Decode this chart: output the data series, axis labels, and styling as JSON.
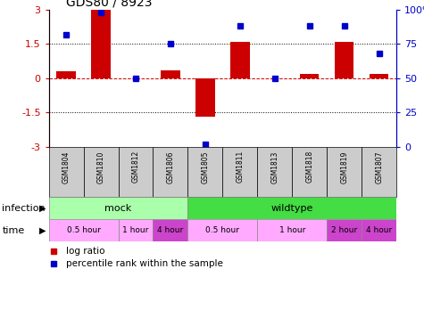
{
  "title": "GDS80 / 8923",
  "samples": [
    "GSM1804",
    "GSM1810",
    "GSM1812",
    "GSM1806",
    "GSM1805",
    "GSM1811",
    "GSM1813",
    "GSM1818",
    "GSM1819",
    "GSM1807"
  ],
  "log_ratio": [
    0.3,
    3.0,
    0.0,
    0.35,
    -1.7,
    1.6,
    0.0,
    0.2,
    1.6,
    0.2
  ],
  "percentile": [
    82,
    98,
    50,
    75,
    2,
    88,
    50,
    88,
    88,
    68
  ],
  "ylim": [
    -3,
    3
  ],
  "yticks_left": [
    -3,
    -1.5,
    0,
    1.5,
    3
  ],
  "yticks_right": [
    0,
    25,
    50,
    75,
    100
  ],
  "hlines_dotted": [
    -1.5,
    1.5
  ],
  "hline_dashed": 0,
  "bar_color": "#cc0000",
  "dot_color": "#0000cc",
  "infection_labels": [
    {
      "label": "mock",
      "start": 0,
      "end": 4,
      "color": "#aaffaa"
    },
    {
      "label": "wildtype",
      "start": 4,
      "end": 10,
      "color": "#44dd44"
    }
  ],
  "time_labels": [
    {
      "label": "0.5 hour",
      "start": 0,
      "end": 2,
      "color": "#ffaaff"
    },
    {
      "label": "1 hour",
      "start": 2,
      "end": 3,
      "color": "#ffaaff"
    },
    {
      "label": "4 hour",
      "start": 3,
      "end": 4,
      "color": "#cc44cc"
    },
    {
      "label": "0.5 hour",
      "start": 4,
      "end": 6,
      "color": "#ffaaff"
    },
    {
      "label": "1 hour",
      "start": 6,
      "end": 8,
      "color": "#ffaaff"
    },
    {
      "label": "2 hour",
      "start": 8,
      "end": 9,
      "color": "#cc44cc"
    },
    {
      "label": "4 hour",
      "start": 9,
      "end": 10,
      "color": "#cc44cc"
    }
  ],
  "legend_items": [
    {
      "label": "log ratio",
      "color": "#cc0000"
    },
    {
      "label": "percentile rank within the sample",
      "color": "#0000cc"
    }
  ],
  "row_label_infection": "infection",
  "row_label_time": "time",
  "sample_bg_color": "#cccccc",
  "n_samples": 10
}
